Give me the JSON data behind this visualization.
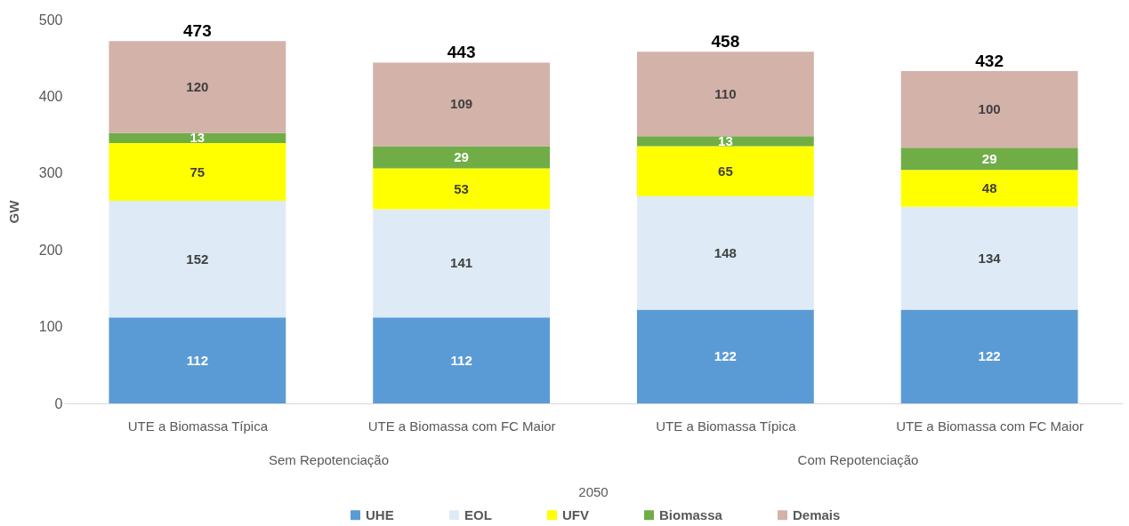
{
  "chart_data": {
    "type": "bar",
    "stacked": true,
    "ylabel": "GW",
    "categories": [
      "UTE a Biomassa Típica",
      "UTE a Biomassa com FC Maior",
      "UTE a Biomassa Típica",
      "UTE a Biomassa com FC Maior"
    ],
    "series": [
      {
        "name": "UHE",
        "color": "#5b9bd5",
        "values": [
          112,
          112,
          122,
          122
        ]
      },
      {
        "name": "EOL",
        "color": "#deebf7",
        "values": [
          152,
          141,
          148,
          134
        ]
      },
      {
        "name": "UFV",
        "color": "#ffff00",
        "values": [
          75,
          53,
          65,
          48
        ]
      },
      {
        "name": "Biomassa",
        "color": "#70ad47",
        "values": [
          13,
          29,
          13,
          29
        ]
      },
      {
        "name": "Demais",
        "color": "#d3b2a9",
        "values": [
          120,
          109,
          110,
          100
        ]
      }
    ],
    "ylim": [
      0,
      500
    ],
    "yticks": [
      0,
      100,
      200,
      300,
      400,
      500
    ],
    "data_labels": true,
    "totals": [
      "473",
      "443",
      "458",
      "432"
    ],
    "annotations": [
      "Sem Repotenciação",
      "Com Repotenciação",
      "2050"
    ],
    "grid": false,
    "legend": "bottom"
  }
}
